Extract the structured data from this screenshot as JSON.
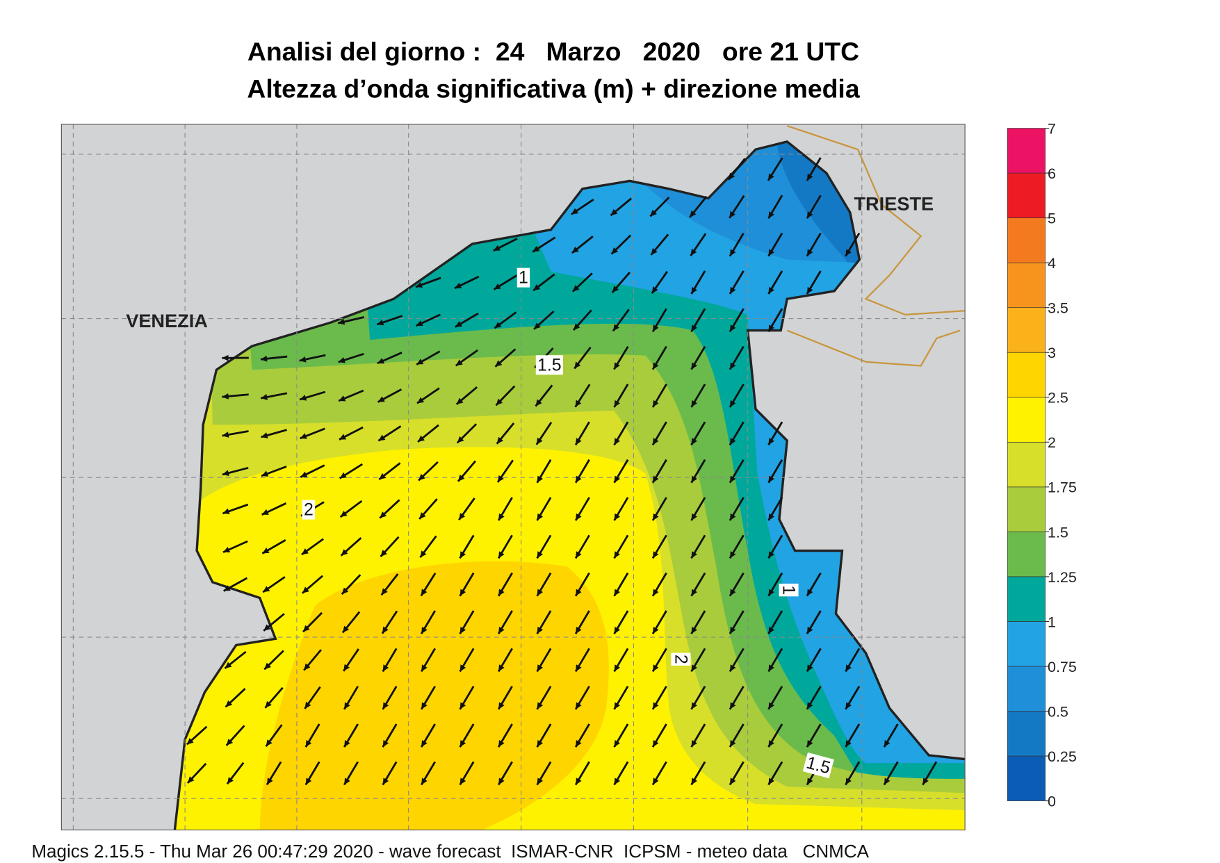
{
  "title": [
    "Analisi del giorno :  24   Marzo   2020   ore 21 UTC",
    "Altezza d’onda significativa (m) + direzione media"
  ],
  "places": [
    "VENEZIA",
    "TRIESTE"
  ],
  "contour_labels": [
    "1",
    "1.5",
    "2",
    "1",
    "2",
    "1.5"
  ],
  "legend": {
    "ticks": [
      0,
      0.25,
      0.5,
      0.75,
      1,
      1.25,
      1.5,
      1.75,
      2,
      2.5,
      3,
      3.5,
      4,
      5,
      6,
      7
    ],
    "colors": [
      "#0a5cb5",
      "#1479c5",
      "#1e8fd8",
      "#22a3e3",
      "#00a89c",
      "#6abb4c",
      "#a9cc3c",
      "#d7df2a",
      "#fff200",
      "#ffd500",
      "#fbb11a",
      "#f7941d",
      "#f47a20",
      "#ed1c24",
      "#ec1264"
    ]
  },
  "footer": "Magics 2.15.5 - Thu Mar 26 00:47:29 2020 - wave forecast  ISMAR-CNR  ICPSM - meteo data   CNMCA"
}
